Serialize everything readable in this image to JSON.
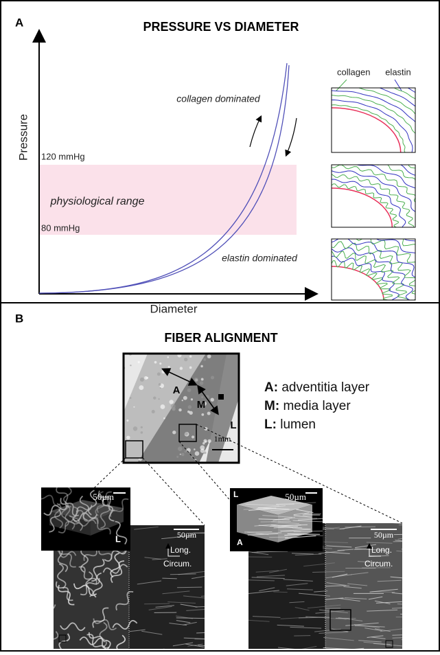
{
  "panel_a": {
    "label": "A",
    "title": "PRESSURE VS DIAMETER",
    "y_axis": "Pressure",
    "x_axis": "Diameter",
    "upper_limit": "120 mmHg",
    "lower_limit": "80 mmHg",
    "range_label": "physiological range",
    "upper_annotation": "collagen dominated",
    "lower_annotation": "elastin dominated",
    "fiber_legend": {
      "collagen": "collagen",
      "elastin": "elastin"
    }
  },
  "panel_b": {
    "label": "B",
    "title": "FIBER ALIGNMENT",
    "image_labels": {
      "adventitia": "A",
      "media": "M",
      "lumen": "L"
    },
    "scale_bar": "1mm",
    "legend": [
      {
        "key": "A:",
        "text": "adventitia layer"
      },
      {
        "key": "M:",
        "text": "media layer"
      },
      {
        "key": "L:",
        "text": "lumen"
      }
    ],
    "left_inset": {
      "cube_scale": "50µm",
      "cube_label": "L",
      "image_scale": "50µm",
      "long": "Long.",
      "circum": "Circum."
    },
    "right_inset": {
      "cube_scale": "50µm",
      "cube_top_label": "L",
      "cube_bottom_label": "A",
      "image_scale": "50µm",
      "long": "Long.",
      "circum": "Circum."
    }
  }
}
